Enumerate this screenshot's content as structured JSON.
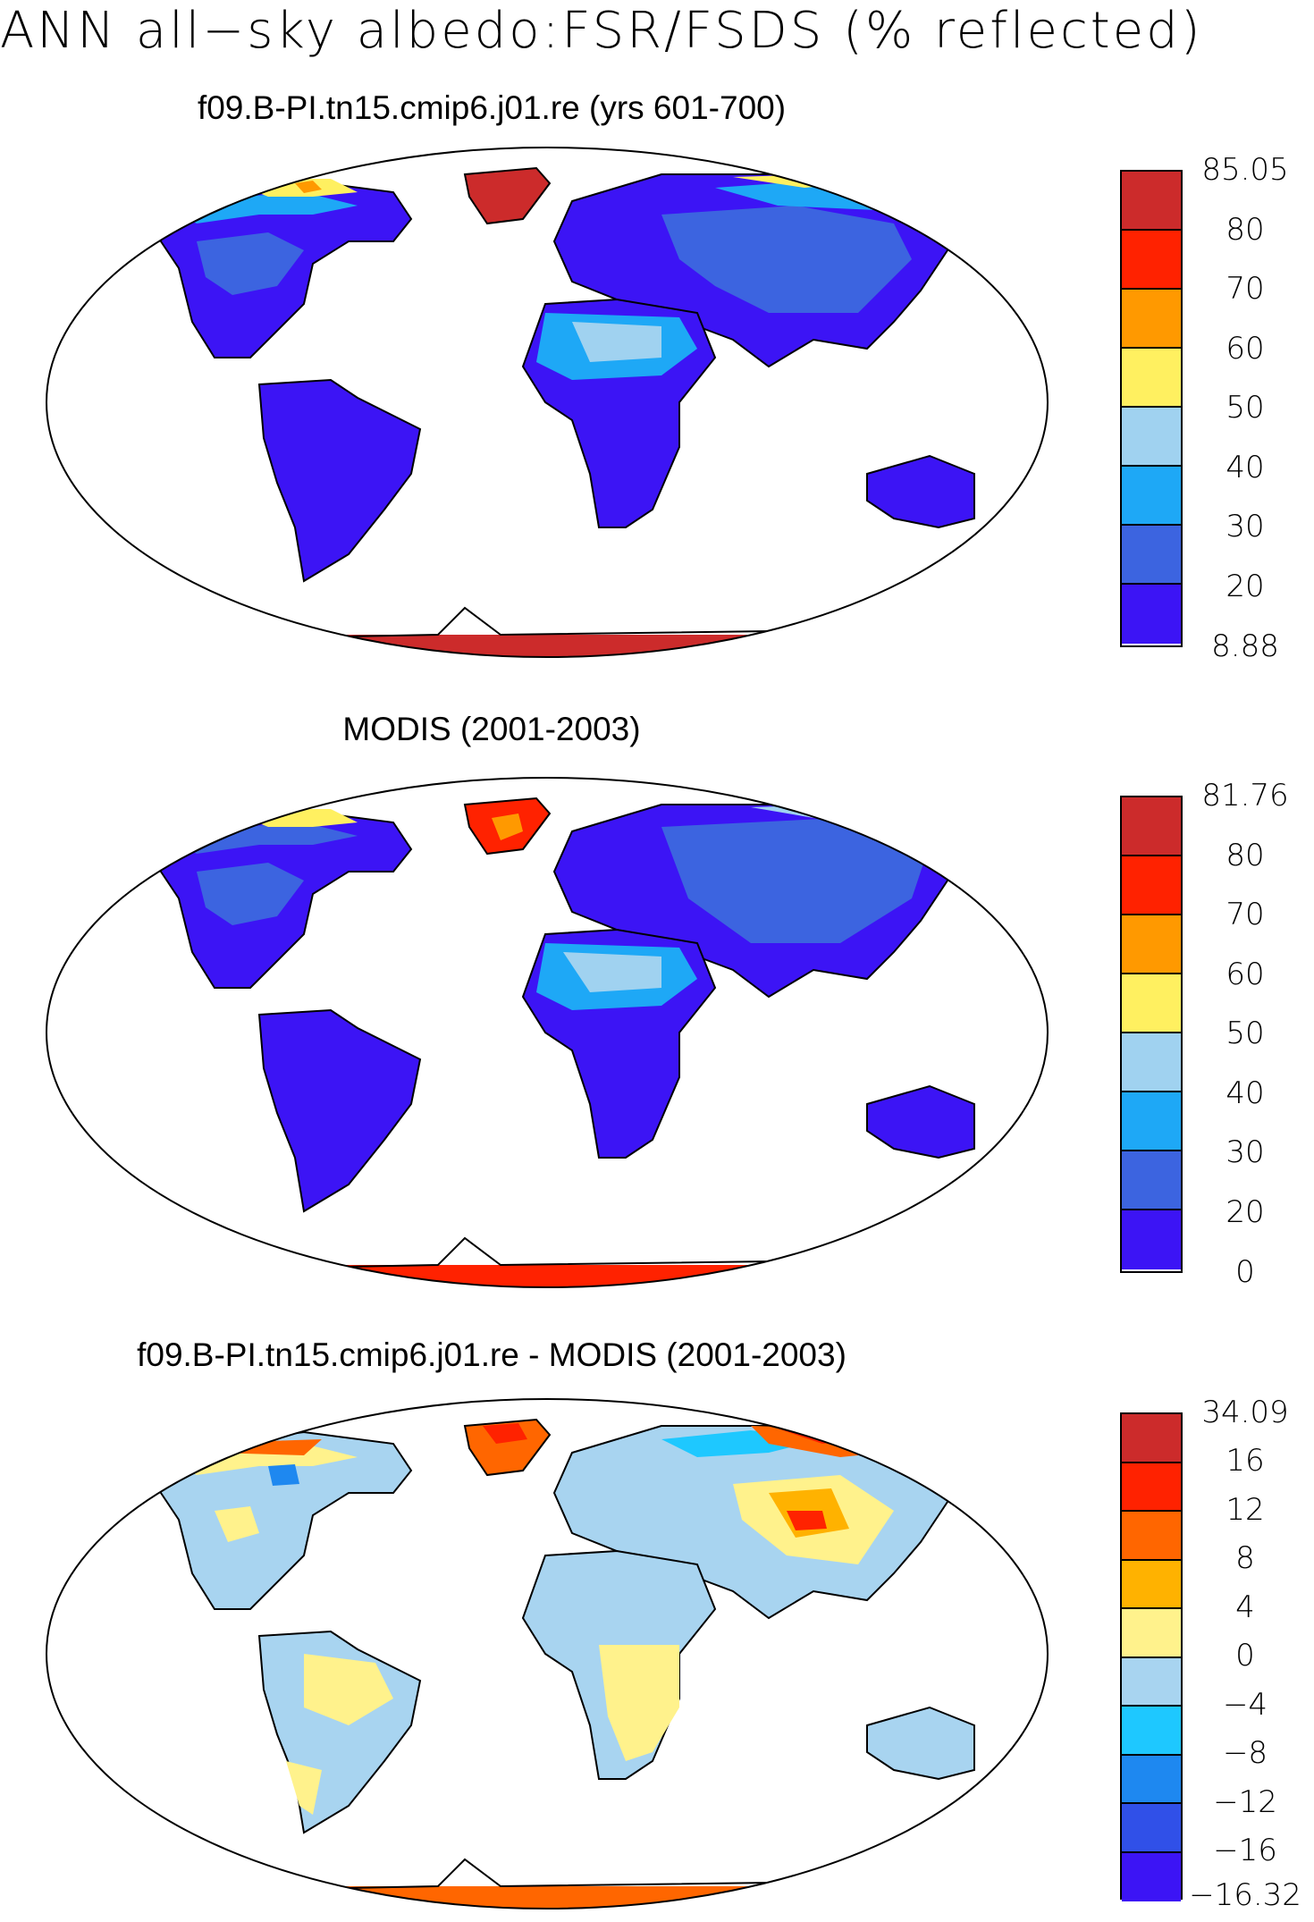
{
  "title": "ANN all−sky albedo:FSR/FSDS (% reflected)",
  "panels": [
    {
      "title": "f09.B-PI.tn15.cmip6.j01.re (yrs 601-700)",
      "colorbar": {
        "labels": [
          "85.05",
          "80",
          "70",
          "60",
          "50",
          "40",
          "30",
          "20",
          "8.88"
        ],
        "colors": [
          "#cc2b2b",
          "#ff2200",
          "#ff9900",
          "#fff060",
          "#a0d2f0",
          "#1ea8f6",
          "#3c64e0",
          "#3c14f5"
        ]
      }
    },
    {
      "title": "MODIS (2001-2003)",
      "colorbar": {
        "labels": [
          "81.76",
          "80",
          "70",
          "60",
          "50",
          "40",
          "30",
          "20",
          "0"
        ],
        "colors": [
          "#cc2b2b",
          "#ff2200",
          "#ff9900",
          "#fff060",
          "#a0d2f0",
          "#1ea8f6",
          "#3c64e0",
          "#3c14f5"
        ]
      }
    },
    {
      "title": "f09.B-PI.tn15.cmip6.j01.re - MODIS (2001-2003)",
      "colorbar": {
        "labels": [
          "34.09",
          "16",
          "12",
          "8",
          "4",
          "0",
          "−4",
          "−8",
          "−12",
          "−16",
          "−16.32"
        ],
        "colors": [
          "#cc2b2b",
          "#ff2200",
          "#ff6600",
          "#ffb200",
          "#fff28c",
          "#a8d4f0",
          "#1ec8ff",
          "#1e88f0",
          "#3050e8",
          "#3c14f5"
        ]
      }
    }
  ],
  "map": {
    "projection": "Robinson",
    "coastlines": true
  }
}
